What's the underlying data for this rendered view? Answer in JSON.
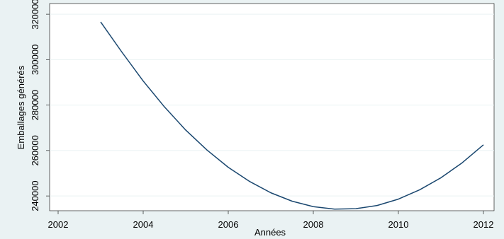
{
  "chart_data": {
    "type": "line",
    "x": [
      2003,
      2003.5,
      2004,
      2004.5,
      2005,
      2005.5,
      2006,
      2006.5,
      2007,
      2007.5,
      2008,
      2008.5,
      2009,
      2009.5,
      2010,
      2010.5,
      2011,
      2011.5,
      2012
    ],
    "series": [
      {
        "name": "Emballages générés",
        "color": "#1a476f",
        "values": [
          316600,
          303300,
          290600,
          279200,
          269000,
          260200,
          252600,
          246400,
          241400,
          237700,
          235300,
          234200,
          234400,
          235800,
          238600,
          242700,
          248000,
          254600,
          262500
        ]
      }
    ],
    "xlabel": "Années",
    "ylabel": "Emballages générés",
    "xlim": [
      2001.8,
      2012.25
    ],
    "ylim": [
      233500,
      324700
    ],
    "xticks": [
      2002,
      2004,
      2006,
      2008,
      2010,
      2012
    ],
    "yticks": [
      240000,
      260000,
      280000,
      300000,
      320000
    ],
    "grid": true
  }
}
